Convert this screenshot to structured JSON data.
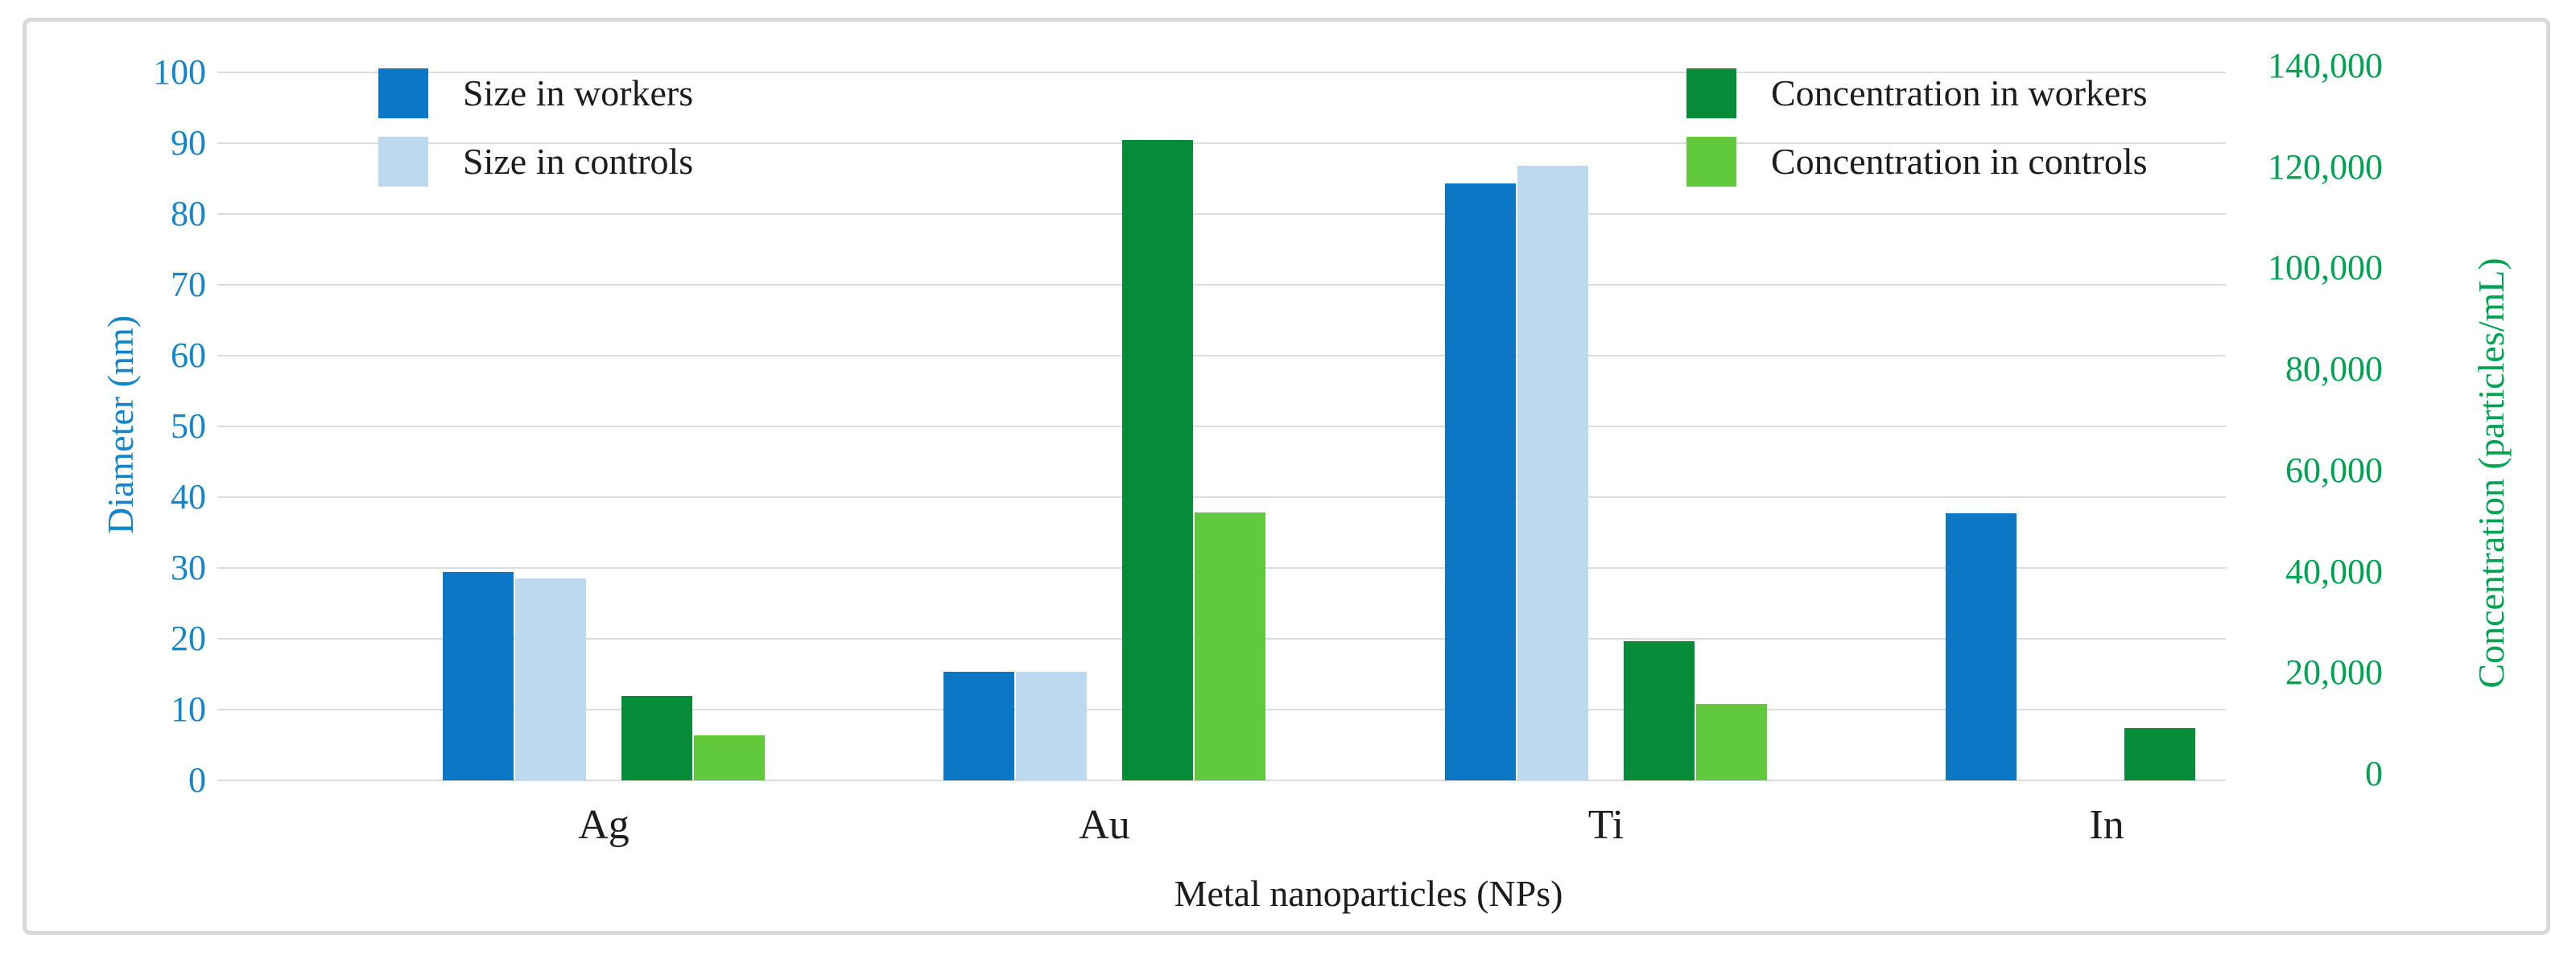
{
  "figure": {
    "x_axis_title": "Metal nanoparticles (NPs)",
    "left_axis_title": "Diameter (nm)",
    "right_axis_title": "Concentration (particles/mL)"
  },
  "legend": {
    "items": [
      {
        "label": "Size in workers",
        "color": "#0b77c5"
      },
      {
        "label": "Size in controls",
        "color": "#bdd9ef"
      },
      {
        "label": "Concentration in workers",
        "color": "#068b39"
      },
      {
        "label": "Concentration in controls",
        "color": "#61ca3c"
      }
    ]
  },
  "chart_data": {
    "type": "bar",
    "title": "",
    "categories": [
      "Ag",
      "Au",
      "Ti",
      "In"
    ],
    "series": [
      {
        "name": "Size in workers",
        "axis": "left",
        "color": "#0b77c5",
        "values": [
          29.4,
          15.3,
          84.3,
          37.7
        ]
      },
      {
        "name": "Size in controls",
        "axis": "left",
        "color": "#bdd9ef",
        "values": [
          28.5,
          15.3,
          86.8,
          0
        ]
      },
      {
        "name": "Concentration in workers",
        "axis": "right",
        "color": "#068b39",
        "values": [
          16700,
          126700,
          27500,
          10400
        ]
      },
      {
        "name": "Concentration in controls",
        "axis": "right",
        "color": "#61ca3c",
        "values": [
          8900,
          52900,
          15100,
          0
        ]
      }
    ],
    "left_axis": {
      "label": "Diameter (nm)",
      "min": 0,
      "max": 100,
      "step": 10,
      "color": "#1385cb",
      "tick_labels": [
        "0",
        "10",
        "20",
        "30",
        "40",
        "50",
        "60",
        "70",
        "80",
        "90",
        "100"
      ]
    },
    "right_axis": {
      "label": "Concentration (particles/mL)",
      "min": 0,
      "max": 140000,
      "step": 20000,
      "color": "#00a351",
      "tick_labels": [
        "0",
        "20,000",
        "40,000",
        "60,000",
        "80,000",
        "100,000",
        "120,000",
        "140,000"
      ]
    },
    "x_axis": {
      "label": "Metal nanoparticles (NPs)"
    },
    "grid": true,
    "legend_position": "top",
    "note_missing_bars": "In group has no Size-in-controls and no Concentration-in-controls bars"
  }
}
